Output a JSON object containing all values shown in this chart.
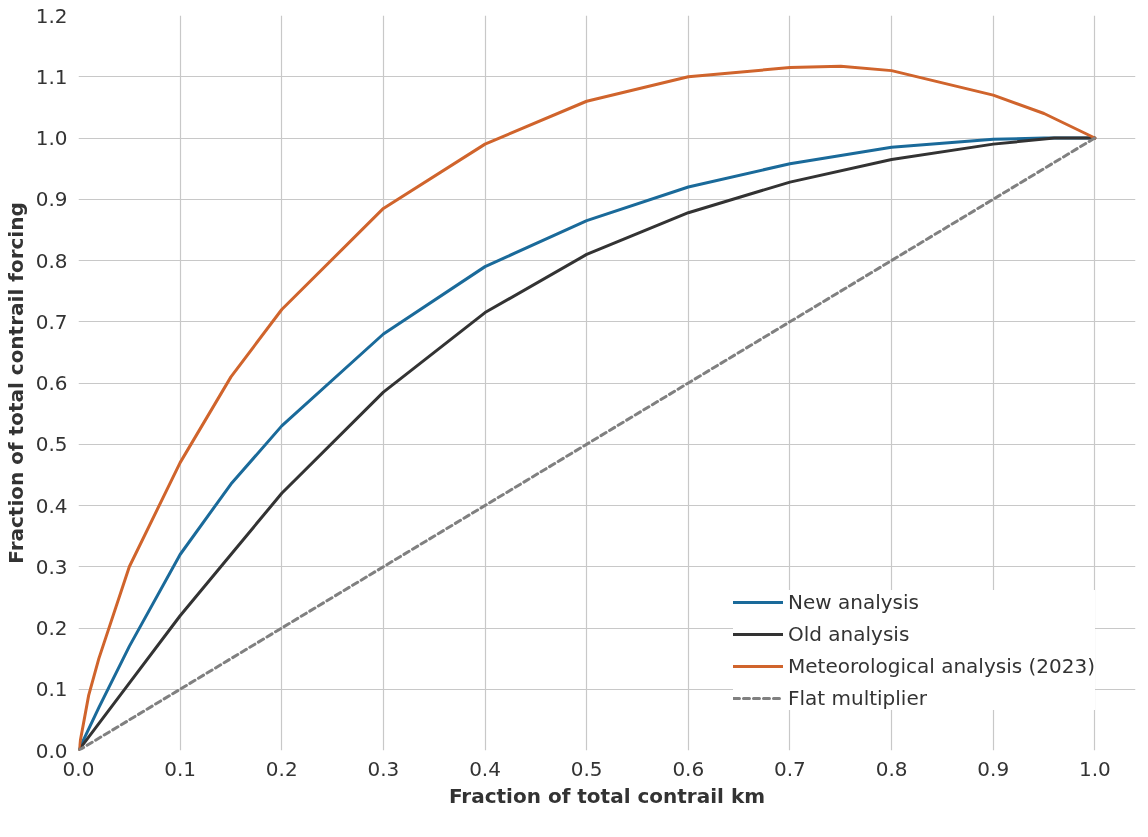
{
  "chart_data": {
    "type": "line",
    "xlabel": "Fraction of total contrail km",
    "ylabel": "Fraction of total contrail forcing",
    "xlim": [
      0,
      1.04
    ],
    "ylim": [
      0,
      1.2
    ],
    "xticks": [
      {
        "value": 0,
        "label": "0.0"
      },
      0.1,
      0.2,
      0.3,
      0.4,
      0.5,
      0.6,
      0.7,
      0.8,
      0.9,
      {
        "value": 1,
        "label": "1.0"
      }
    ],
    "yticks": [
      {
        "value": 0,
        "label": "0.0"
      },
      0.1,
      0.2,
      0.3,
      0.4,
      0.5,
      0.6,
      0.7,
      0.8,
      0.9,
      {
        "value": 1,
        "label": "1.0"
      },
      1.1,
      1.2
    ],
    "grid": true,
    "legend": "bottom right",
    "line_style": "solid",
    "series": [
      {
        "name": "New analysis",
        "color": "#1a6a9a",
        "x": [
          0,
          0.02,
          0.05,
          0.1,
          0.15,
          0.2,
          0.3,
          0.4,
          0.5,
          0.6,
          0.7,
          0.8,
          0.9,
          0.95,
          1.0
        ],
        "values": [
          0,
          0.07,
          0.17,
          0.32,
          0.435,
          0.53,
          0.68,
          0.79,
          0.865,
          0.92,
          0.958,
          0.985,
          0.998,
          1.0,
          1.0
        ]
      },
      {
        "name": "Old analysis",
        "color": "#333333",
        "x": [
          0,
          0.05,
          0.1,
          0.15,
          0.2,
          0.3,
          0.4,
          0.5,
          0.6,
          0.7,
          0.8,
          0.9,
          0.96,
          1.0
        ],
        "values": [
          0,
          0.11,
          0.22,
          0.32,
          0.42,
          0.585,
          0.715,
          0.81,
          0.878,
          0.928,
          0.965,
          0.99,
          1.0,
          1.0
        ]
      },
      {
        "name": "Meteorological analysis (2023)",
        "color": "#d0642c",
        "x": [
          0,
          0.01,
          0.02,
          0.05,
          0.1,
          0.15,
          0.2,
          0.3,
          0.4,
          0.5,
          0.6,
          0.7,
          0.75,
          0.8,
          0.9,
          0.95,
          1.0
        ],
        "values": [
          0,
          0.09,
          0.15,
          0.3,
          0.47,
          0.61,
          0.72,
          0.885,
          0.99,
          1.06,
          1.1,
          1.115,
          1.117,
          1.11,
          1.07,
          1.04,
          1.0
        ]
      },
      {
        "name": "Flat multiplier",
        "color": "#808080",
        "line_style": "dashed",
        "x": [
          0,
          1
        ],
        "values": [
          0,
          1
        ]
      }
    ]
  }
}
